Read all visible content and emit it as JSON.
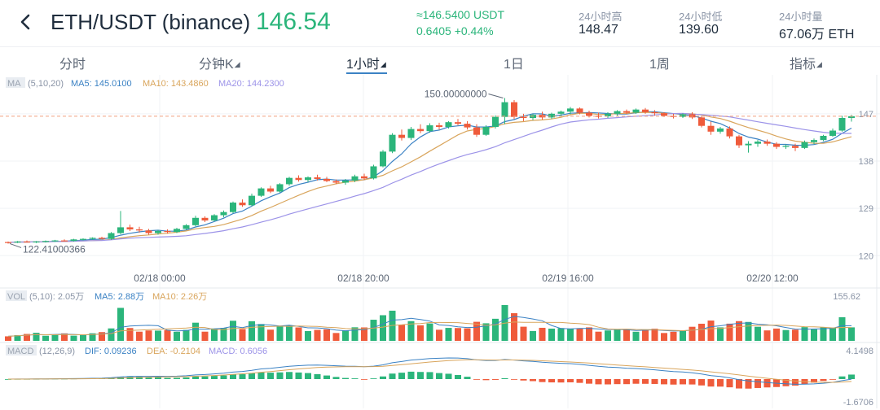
{
  "header": {
    "pair": "ETH/USDT (binance)",
    "price": "146.54",
    "sub_price": "≈146.5400 USDT",
    "change": "0.6405 +0.44%",
    "stats": [
      {
        "label": "24小时高",
        "value": "148.47"
      },
      {
        "label": "24小时低",
        "value": "139.60"
      },
      {
        "label": "24小时量",
        "value": "67.06万 ETH"
      }
    ]
  },
  "tabs": [
    {
      "label": "分时",
      "caret": ""
    },
    {
      "label": "分钟K",
      "caret": "◢"
    },
    {
      "label": "1小时",
      "caret": "◢"
    },
    {
      "label": "1日",
      "caret": ""
    },
    {
      "label": "1周",
      "caret": ""
    },
    {
      "label": "指标",
      "caret": "◢"
    }
  ],
  "colors": {
    "up": "#2bb57b",
    "down": "#ef5b3b",
    "ma5": "#3b82c4",
    "ma10": "#d9a55c",
    "ma20": "#9c93e8"
  },
  "ma_legend": {
    "tag": "MA",
    "params": "(5,10,20)",
    "ma5": "MA5: 145.0100",
    "ma10": "MA10: 143.4860",
    "ma20": "MA20: 144.2300"
  },
  "vol_legend": {
    "tag": "VOL",
    "params": "(5,10): 2.05万",
    "ma5": "MA5: 2.88万",
    "ma10": "MA10: 2.26万"
  },
  "macd_legend": {
    "tag": "MACD",
    "params": "(12,26,9)",
    "dif": "DIF: 0.09236",
    "dea": "DEA: -0.2104",
    "macd": "MACD: 0.6056"
  },
  "chart_data": {
    "type": "candlestick",
    "price_axis": {
      "ticks": [
        "147",
        "138",
        "129",
        "120"
      ],
      "range": [
        118.5,
        151
      ]
    },
    "time_labels": [
      "02/18 00:00",
      "02/18 20:00",
      "02/19 16:00",
      "02/20 12:00"
    ],
    "current_price": 146.54,
    "max_label": "150.00000000",
    "min_label": "122.41000366",
    "candles": [
      [
        122.6,
        122.7,
        122.3,
        122.5
      ],
      [
        122.5,
        122.8,
        122.4,
        122.7
      ],
      [
        122.7,
        122.9,
        122.5,
        122.6
      ],
      [
        122.6,
        122.8,
        122.4,
        122.7
      ],
      [
        122.7,
        122.9,
        122.5,
        122.8
      ],
      [
        122.8,
        123.0,
        122.6,
        122.9
      ],
      [
        122.9,
        123.1,
        122.7,
        122.8
      ],
      [
        122.8,
        123.2,
        122.7,
        123.1
      ],
      [
        123.1,
        123.3,
        122.9,
        123.2
      ],
      [
        123.2,
        123.5,
        123.0,
        123.4
      ],
      [
        123.4,
        123.6,
        123.1,
        123.2
      ],
      [
        123.2,
        124.5,
        123.0,
        124.3
      ],
      [
        124.3,
        128.5,
        124.1,
        125.4
      ],
      [
        125.4,
        125.9,
        124.7,
        125.0
      ],
      [
        125.0,
        125.5,
        124.4,
        124.8
      ],
      [
        124.8,
        125.1,
        124.0,
        124.3
      ],
      [
        124.3,
        124.9,
        124.0,
        124.7
      ],
      [
        124.7,
        125.0,
        124.2,
        124.5
      ],
      [
        124.5,
        125.3,
        124.3,
        125.1
      ],
      [
        125.1,
        126.0,
        124.9,
        125.8
      ],
      [
        125.8,
        127.6,
        125.6,
        127.2
      ],
      [
        127.2,
        127.5,
        126.4,
        126.7
      ],
      [
        126.7,
        127.9,
        126.5,
        127.7
      ],
      [
        127.7,
        128.6,
        127.3,
        128.3
      ],
      [
        128.3,
        130.3,
        128.1,
        130.1
      ],
      [
        130.1,
        130.7,
        129.3,
        129.6
      ],
      [
        129.6,
        131.8,
        129.4,
        131.4
      ],
      [
        131.4,
        133.0,
        131.2,
        132.8
      ],
      [
        132.8,
        133.3,
        131.9,
        132.2
      ],
      [
        132.2,
        133.8,
        132.0,
        133.6
      ],
      [
        133.6,
        135.0,
        133.3,
        134.8
      ],
      [
        134.8,
        135.3,
        134.1,
        134.4
      ],
      [
        134.4,
        135.1,
        134.0,
        134.9
      ],
      [
        134.9,
        135.4,
        134.3,
        134.6
      ],
      [
        134.6,
        135.0,
        134.0,
        134.2
      ],
      [
        134.2,
        134.5,
        133.6,
        133.9
      ],
      [
        133.9,
        134.6,
        133.5,
        134.3
      ],
      [
        134.3,
        135.4,
        134.0,
        135.1
      ],
      [
        135.1,
        135.6,
        134.4,
        134.7
      ],
      [
        134.7,
        137.3,
        134.5,
        137.0
      ],
      [
        137.0,
        140.1,
        136.8,
        139.8
      ],
      [
        139.8,
        143.3,
        139.5,
        143.0
      ],
      [
        143.0,
        144.0,
        141.9,
        142.4
      ],
      [
        142.4,
        144.5,
        142.0,
        144.1
      ],
      [
        144.1,
        145.0,
        143.3,
        143.7
      ],
      [
        143.7,
        145.2,
        143.4,
        144.8
      ],
      [
        144.8,
        145.3,
        144.0,
        144.5
      ],
      [
        144.5,
        145.6,
        144.2,
        145.4
      ],
      [
        145.4,
        146.0,
        144.8,
        145.1
      ],
      [
        145.1,
        145.6,
        144.0,
        144.4
      ],
      [
        144.4,
        145.0,
        142.6,
        143.0
      ],
      [
        143.0,
        144.8,
        142.8,
        144.5
      ],
      [
        144.5,
        146.7,
        144.2,
        146.4
      ],
      [
        146.4,
        150.0,
        145.0,
        149.2
      ],
      [
        149.2,
        149.6,
        146.0,
        146.4
      ],
      [
        146.4,
        147.0,
        145.6,
        146.2
      ],
      [
        146.2,
        147.0,
        145.8,
        146.8
      ],
      [
        146.8,
        147.4,
        145.9,
        146.3
      ],
      [
        146.3,
        147.2,
        146.0,
        147.0
      ],
      [
        147.0,
        147.6,
        146.5,
        147.4
      ],
      [
        147.4,
        148.3,
        146.9,
        148.0
      ],
      [
        148.0,
        148.2,
        146.9,
        147.2
      ],
      [
        147.2,
        147.6,
        146.3,
        146.6
      ],
      [
        146.6,
        147.2,
        146.1,
        146.5
      ],
      [
        146.5,
        147.3,
        146.2,
        147.0
      ],
      [
        147.0,
        147.7,
        146.6,
        147.5
      ],
      [
        147.5,
        147.8,
        146.9,
        147.2
      ],
      [
        147.2,
        148.0,
        147.0,
        147.8
      ],
      [
        147.8,
        148.1,
        147.0,
        147.3
      ],
      [
        147.3,
        147.7,
        146.6,
        147.1
      ],
      [
        147.1,
        147.3,
        146.4,
        146.6
      ],
      [
        146.6,
        147.0,
        146.1,
        146.4
      ],
      [
        146.4,
        147.1,
        146.2,
        146.9
      ],
      [
        146.9,
        147.3,
        146.0,
        146.3
      ],
      [
        146.3,
        146.6,
        144.4,
        144.7
      ],
      [
        144.7,
        145.5,
        143.0,
        143.6
      ],
      [
        143.6,
        144.5,
        143.2,
        144.2
      ],
      [
        144.2,
        144.6,
        142.3,
        142.7
      ],
      [
        142.7,
        143.0,
        140.5,
        141.0
      ],
      [
        141.0,
        141.8,
        139.6,
        141.3
      ],
      [
        141.3,
        142.0,
        140.7,
        141.7
      ],
      [
        141.7,
        142.1,
        140.9,
        141.3
      ],
      [
        141.3,
        141.6,
        140.3,
        140.7
      ],
      [
        140.7,
        141.2,
        140.3,
        140.9
      ],
      [
        140.9,
        141.3,
        139.9,
        140.5
      ],
      [
        140.5,
        141.9,
        140.3,
        141.6
      ],
      [
        141.6,
        142.3,
        141.2,
        142.0
      ],
      [
        142.0,
        143.0,
        141.8,
        142.8
      ],
      [
        142.8,
        144.2,
        142.6,
        143.8
      ],
      [
        143.8,
        146.6,
        143.6,
        146.2
      ],
      [
        146.2,
        146.8,
        145.5,
        146.54
      ]
    ],
    "vol_axis": {
      "top_label": "155.62"
    },
    "macd_axis": {
      "top_label": "4.1498",
      "bottom_label": "-1.6706"
    }
  }
}
